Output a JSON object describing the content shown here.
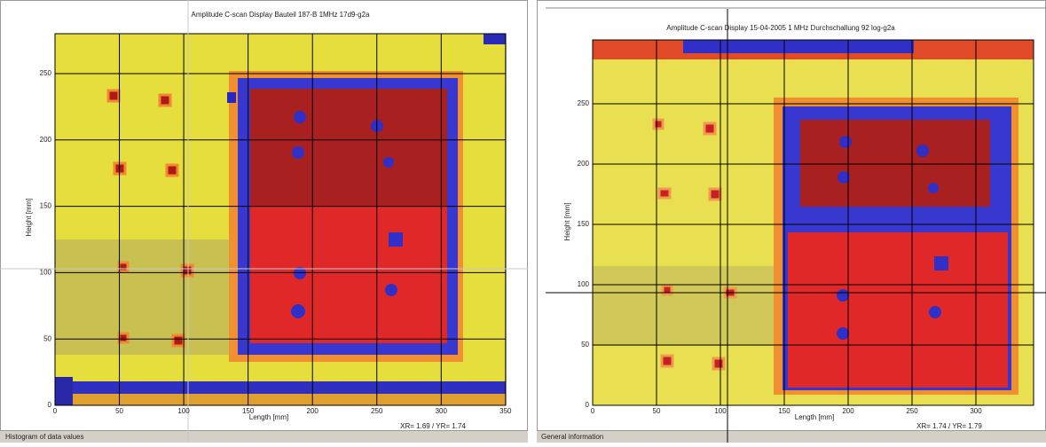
{
  "panels": [
    {
      "title": "Amplitude C-scan Display Bauteil 187-B 1MHz 17d9-g2a",
      "x_label": "Length [mm]",
      "y_label": "Height [mm]",
      "x_ticks": [
        0,
        50,
        100,
        150,
        200,
        250,
        300,
        350
      ],
      "y_ticks": [
        0,
        50,
        100,
        150,
        200,
        250
      ],
      "readout": "XR= 1.69 / YR= 1.74",
      "status": "Histogram of data values"
    },
    {
      "title": "Amplitude C-scan Display 15-04-2005 1 MHz Durchschallung 92 log-g2a",
      "x_label": "Length [mm]",
      "y_label": "Height [mm]",
      "x_ticks": [
        0,
        50,
        100,
        150,
        200,
        250,
        300
      ],
      "y_ticks": [
        0,
        50,
        100,
        150,
        200,
        250
      ],
      "readout": "XR= 1.74 / YR= 1.79",
      "status": "General information"
    }
  ]
}
